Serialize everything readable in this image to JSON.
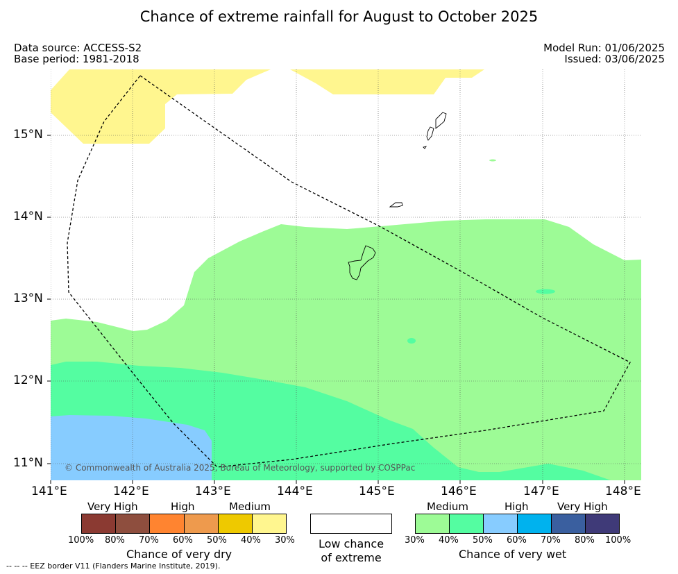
{
  "title": "Chance of extreme rainfall for August to October 2025",
  "meta": {
    "data_source": "Data source: ACCESS-S2",
    "base_period": "Base period: 1981-2018",
    "model_run": "Model Run: 01/06/2025",
    "issued": "Issued: 03/06/2025"
  },
  "map": {
    "lat_labels": [
      "15°N",
      "14°N",
      "13°N",
      "12°N",
      "11°N"
    ],
    "lon_labels": [
      "141°E",
      "142°E",
      "143°E",
      "144°E",
      "145°E",
      "146°E",
      "147°E",
      "148°E"
    ],
    "copyright": "© Commonwealth of Australia 2025, Bureau of Meteorology, supported by COSPPac",
    "colors": {
      "light_yellow": "#FFF68F",
      "light_green": "#9DFB96",
      "mid_green": "#54FDA1",
      "light_blue": "#87CCFF",
      "eez_line": "#000000"
    }
  },
  "legend": {
    "dry": {
      "categories": [
        "Very High",
        "High",
        "Medium"
      ],
      "colors": [
        "#8B3A32",
        "#8E4E3E",
        "#FF8430",
        "#EE9A4D",
        "#EEC900",
        "#FFF68F"
      ],
      "ticks": [
        "100%",
        "80%",
        "70%",
        "60%",
        "50%",
        "40%",
        "30%"
      ],
      "title": "Chance of very dry"
    },
    "low": {
      "color": "#FFFFFF",
      "line1": "Low chance",
      "line2": "of extreme"
    },
    "wet": {
      "categories": [
        "Medium",
        "High",
        "Very High"
      ],
      "colors": [
        "#9DFB96",
        "#54FDA1",
        "#87CCFF",
        "#00B2EE",
        "#3A5F9F",
        "#3F3A78"
      ],
      "ticks": [
        "30%",
        "40%",
        "50%",
        "60%",
        "70%",
        "80%",
        "100%"
      ],
      "title": "Chance of very wet"
    }
  },
  "footnote": "--  --  -- EEZ border V11 (Flanders Marine Institute, 2019)."
}
